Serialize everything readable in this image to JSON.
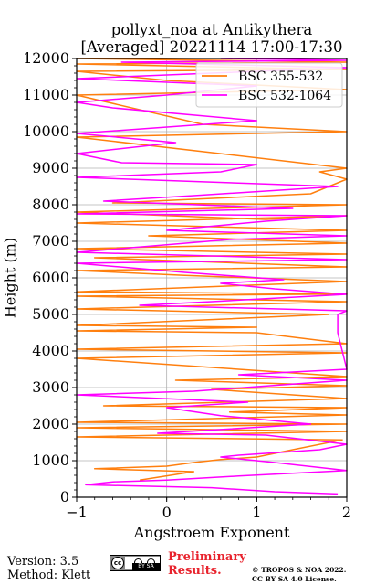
{
  "chart_data": {
    "type": "line",
    "title_line1": "pollyxt_noa at Antikythera",
    "title_line2": "[Averaged] 20221114 17:00-17:30",
    "xlabel": "Angstroem Exponent",
    "ylabel": "Height (m)",
    "xlim": [
      -1,
      2
    ],
    "ylim": [
      0,
      12000
    ],
    "xticks": [
      "−1",
      "0",
      "1",
      "2"
    ],
    "xtick_values": [
      -1,
      0,
      1,
      2
    ],
    "yticks": [
      "0",
      "1000",
      "2000",
      "3000",
      "4000",
      "5000",
      "6000",
      "7000",
      "8000",
      "9000",
      "10000",
      "11000",
      "12000"
    ],
    "ytick_values": [
      0,
      1000,
      2000,
      3000,
      4000,
      5000,
      6000,
      7000,
      8000,
      9000,
      10000,
      11000,
      12000
    ],
    "grid": true,
    "legend_position": "top-right",
    "series": [
      {
        "name": "BSC 355-532",
        "color": "#ff7f0e",
        "points": [
          [
            -0.3,
            470
          ],
          [
            0.3,
            700
          ],
          [
            -0.8,
            780
          ],
          [
            0.0,
            850
          ],
          [
            0.3,
            950
          ],
          [
            0.6,
            1030
          ],
          [
            1.0,
            1100
          ],
          [
            1.4,
            1300
          ],
          [
            1.95,
            1570
          ],
          [
            -1.0,
            1650
          ],
          [
            2.0,
            1800
          ],
          [
            -1.0,
            1900
          ],
          [
            2.0,
            2000
          ],
          [
            -1.0,
            2050
          ],
          [
            2.0,
            2250
          ],
          [
            0.7,
            2330
          ],
          [
            2.0,
            2450
          ],
          [
            -0.7,
            2500
          ],
          [
            2.0,
            2700
          ],
          [
            0.5,
            2950
          ],
          [
            2.0,
            3050
          ],
          [
            0.1,
            3200
          ],
          [
            2.0,
            3300
          ],
          [
            -1.0,
            3800
          ],
          [
            2.0,
            3950
          ],
          [
            -1.0,
            4050
          ],
          [
            2.0,
            4200
          ],
          [
            1.0,
            4500
          ],
          [
            -1.0,
            4550
          ],
          [
            1.0,
            4650
          ],
          [
            -1.0,
            4700
          ],
          [
            1.8,
            5000
          ],
          [
            -1.0,
            5150
          ],
          [
            2.0,
            5350
          ],
          [
            -1.0,
            5500
          ],
          [
            2.0,
            5560
          ],
          [
            -1.0,
            5620
          ],
          [
            2.0,
            5900
          ],
          [
            0.2,
            6070
          ],
          [
            -1.0,
            6200
          ],
          [
            2.0,
            6300
          ],
          [
            -0.8,
            6550
          ],
          [
            2.0,
            6650
          ],
          [
            -1.0,
            6800
          ],
          [
            2.0,
            6950
          ],
          [
            -0.2,
            7150
          ],
          [
            2.0,
            7300
          ],
          [
            -1.0,
            7500
          ],
          [
            2.0,
            7700
          ],
          [
            1.1,
            7600
          ],
          [
            -1.0,
            7800
          ],
          [
            2.0,
            8000
          ],
          [
            -0.6,
            8050
          ],
          [
            1.6,
            8300
          ],
          [
            2.0,
            8700
          ],
          [
            1.7,
            8900
          ],
          [
            2.0,
            9000
          ],
          [
            -1.0,
            9850
          ],
          [
            2.0,
            10000
          ],
          [
            0.4,
            10200
          ],
          [
            -1.0,
            11000
          ],
          [
            2.0,
            11150
          ],
          [
            0.0,
            11400
          ],
          [
            -1.0,
            11650
          ],
          [
            2.0,
            11700
          ],
          [
            -1.0,
            11850
          ],
          [
            2.0,
            11900
          ],
          [
            -1.0,
            12000
          ]
        ]
      },
      {
        "name": "BSC 532-1064",
        "color": "#ff00ff",
        "points": [
          [
            1.9,
            90
          ],
          [
            1.2,
            150
          ],
          [
            0.5,
            260
          ],
          [
            -0.9,
            340
          ],
          [
            -0.6,
            420
          ],
          [
            0.0,
            470
          ],
          [
            0.8,
            580
          ],
          [
            2.0,
            730
          ],
          [
            1.2,
            950
          ],
          [
            0.6,
            1100
          ],
          [
            0.8,
            1150
          ],
          [
            1.7,
            1300
          ],
          [
            2.0,
            1450
          ],
          [
            1.1,
            1700
          ],
          [
            -0.1,
            1750
          ],
          [
            1.6,
            2000
          ],
          [
            0.6,
            2230
          ],
          [
            0.0,
            2450
          ],
          [
            0.9,
            2600
          ],
          [
            -1.0,
            2800
          ],
          [
            0.3,
            2900
          ],
          [
            2.0,
            3200
          ],
          [
            0.8,
            3350
          ],
          [
            2.0,
            3500
          ],
          [
            1.9,
            4500
          ],
          [
            1.9,
            5000
          ],
          [
            2.0,
            5100
          ],
          [
            -0.3,
            5250
          ],
          [
            0.5,
            5350
          ],
          [
            2.0,
            5550
          ],
          [
            1.2,
            5700
          ],
          [
            0.6,
            5850
          ],
          [
            1.3,
            5950
          ],
          [
            0.2,
            6150
          ],
          [
            -1.0,
            6400
          ],
          [
            2.0,
            6500
          ],
          [
            -1.0,
            6700
          ],
          [
            0.7,
            7050
          ],
          [
            2.0,
            7150
          ],
          [
            0.0,
            7300
          ],
          [
            1.1,
            7550
          ],
          [
            2.0,
            7700
          ],
          [
            -1.0,
            7750
          ],
          [
            1.4,
            7900
          ],
          [
            -0.7,
            8100
          ],
          [
            0.3,
            8250
          ],
          [
            1.9,
            8500
          ],
          [
            -1.0,
            8750
          ],
          [
            0.6,
            8900
          ],
          [
            1.0,
            9100
          ],
          [
            -0.5,
            9150
          ],
          [
            -1.0,
            9400
          ],
          [
            0.1,
            9700
          ],
          [
            -1.0,
            9950
          ],
          [
            1.0,
            10300
          ],
          [
            -0.6,
            10650
          ],
          [
            -1.0,
            10800
          ],
          [
            0.0,
            11000
          ],
          [
            1.0,
            11250
          ],
          [
            -1.0,
            11450
          ],
          [
            0.5,
            11600
          ],
          [
            2.0,
            11750
          ],
          [
            -0.5,
            11900
          ],
          [
            2.0,
            11950
          ],
          [
            0.6,
            12000
          ]
        ]
      }
    ]
  },
  "footer": {
    "version": "Version: 3.5",
    "method": "Method: Klett",
    "badge_text": "BY  SA",
    "preliminary_line1": "Preliminary",
    "preliminary_line2": "Results.",
    "copyright_line1": "© TROPOS & NOA 2022.",
    "copyright_line2": "CC BY SA 4.0 License."
  }
}
